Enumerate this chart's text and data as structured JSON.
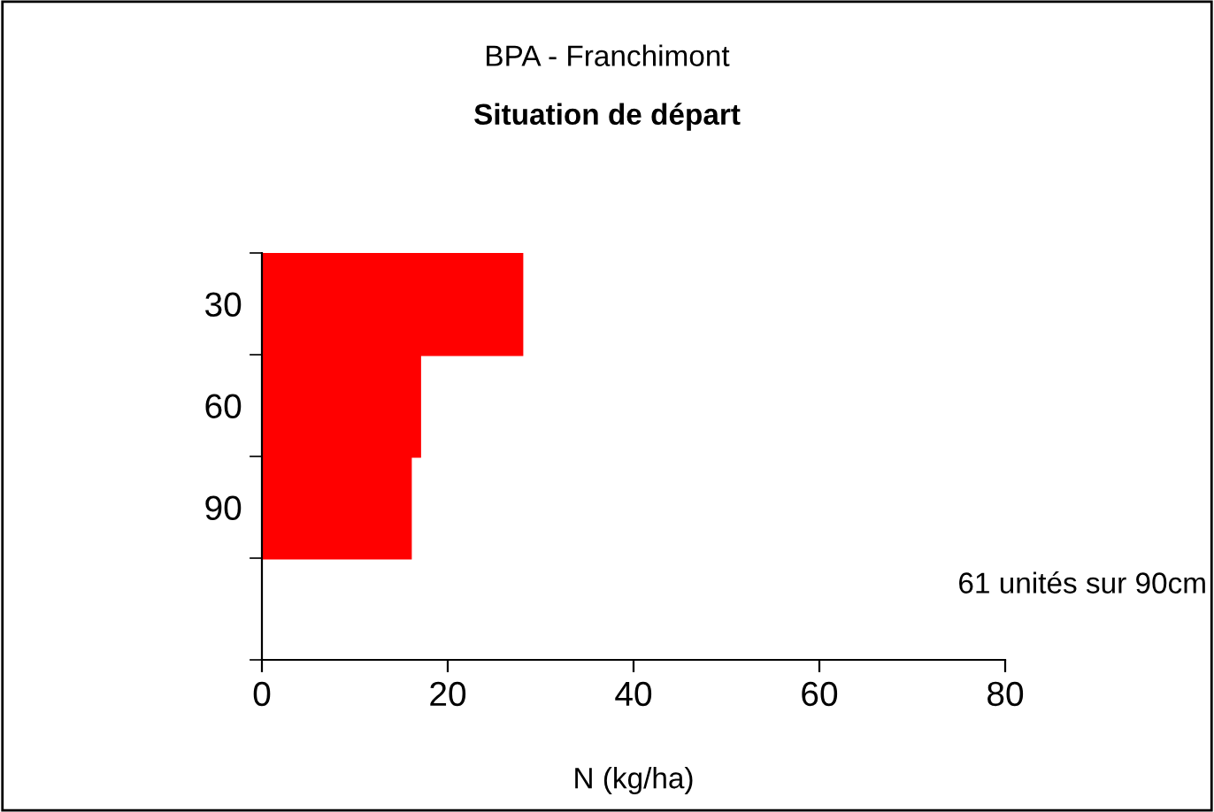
{
  "chart_data": {
    "type": "bar",
    "orientation": "horizontal",
    "title": "BPA - Franchimont",
    "subtitle": "Situation de départ",
    "xlabel": "N (kg/ha)",
    "categories": [
      "30",
      "60",
      "90",
      null
    ],
    "values": [
      28,
      17,
      16,
      null
    ],
    "color": "#ff0000",
    "xlim": [
      0,
      80
    ],
    "xticks": [
      0,
      20,
      40,
      60,
      80
    ],
    "grid": false,
    "legend": false,
    "annotations": [
      "61 unités sur 90cm"
    ]
  }
}
